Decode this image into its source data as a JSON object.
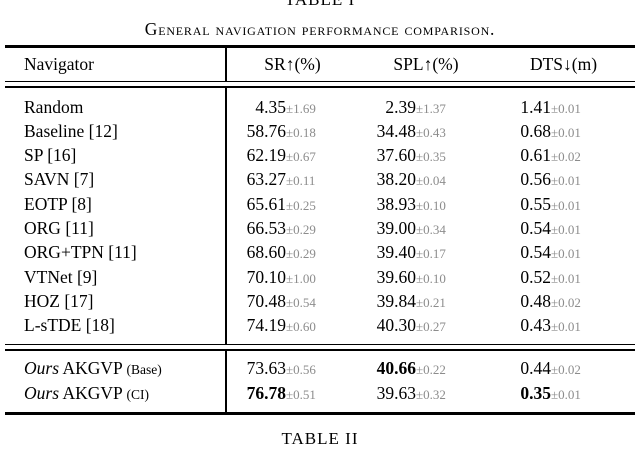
{
  "labels": {
    "table_top": "TABLE I",
    "caption": "General navigation performance comparison.",
    "table_bottom": "TABLE II"
  },
  "colors": {
    "text": "#000000",
    "error_text": "#8c8c8c",
    "background": "#ffffff"
  },
  "table": {
    "columns": {
      "navigator": "Navigator",
      "sr": "SR↑(%)",
      "spl": "SPL↑(%)",
      "dts": "DTS↓(m)"
    },
    "rows": [
      {
        "name": "Random",
        "sr": "4.35",
        "sr_err": "±1.69",
        "spl": "2.39",
        "spl_err": "±1.37",
        "dts": "1.41",
        "dts_err": "±0.01"
      },
      {
        "name": "Baseline [12]",
        "sr": "58.76",
        "sr_err": "±0.18",
        "spl": "34.48",
        "spl_err": "±0.43",
        "dts": "0.68",
        "dts_err": "±0.01"
      },
      {
        "name": "SP [16]",
        "sr": "62.19",
        "sr_err": "±0.67",
        "spl": "37.60",
        "spl_err": "±0.35",
        "dts": "0.61",
        "dts_err": "±0.02"
      },
      {
        "name": "SAVN [7]",
        "sr": "63.27",
        "sr_err": "±0.11",
        "spl": "38.20",
        "spl_err": "±0.04",
        "dts": "0.56",
        "dts_err": "±0.01"
      },
      {
        "name": "EOTP [8]",
        "sr": "65.61",
        "sr_err": "±0.25",
        "spl": "38.93",
        "spl_err": "±0.10",
        "dts": "0.55",
        "dts_err": "±0.01"
      },
      {
        "name": "ORG [11]",
        "sr": "66.53",
        "sr_err": "±0.29",
        "spl": "39.00",
        "spl_err": "±0.34",
        "dts": "0.54",
        "dts_err": "±0.01"
      },
      {
        "name": "ORG+TPN [11]",
        "sr": "68.60",
        "sr_err": "±0.29",
        "spl": "39.40",
        "spl_err": "±0.17",
        "dts": "0.54",
        "dts_err": "±0.01"
      },
      {
        "name": "VTNet [9]",
        "sr": "70.10",
        "sr_err": "±1.00",
        "spl": "39.60",
        "spl_err": "±0.10",
        "dts": "0.52",
        "dts_err": "±0.01"
      },
      {
        "name": "HOZ [17]",
        "sr": "70.48",
        "sr_err": "±0.54",
        "spl": "39.84",
        "spl_err": "±0.21",
        "dts": "0.48",
        "dts_err": "±0.02"
      },
      {
        "name": "L-sTDE [18]",
        "sr": "74.19",
        "sr_err": "±0.60",
        "spl": "40.30",
        "spl_err": "±0.27",
        "dts": "0.43",
        "dts_err": "±0.01"
      }
    ],
    "ours_rows": [
      {
        "prefix": "Ours",
        "model": "AKGVP",
        "variant": "(Base)",
        "sr": "73.63",
        "sr_err": "±0.56",
        "spl": "40.66",
        "spl_err": "±0.22",
        "dts": "0.44",
        "dts_err": "±0.02"
      },
      {
        "prefix": "Ours",
        "model": "AKGVP",
        "variant": "(CI)",
        "sr": "76.78",
        "sr_err": "±0.51",
        "spl": "39.63",
        "spl_err": "±0.32",
        "dts": "0.35",
        "dts_err": "±0.01"
      }
    ]
  }
}
